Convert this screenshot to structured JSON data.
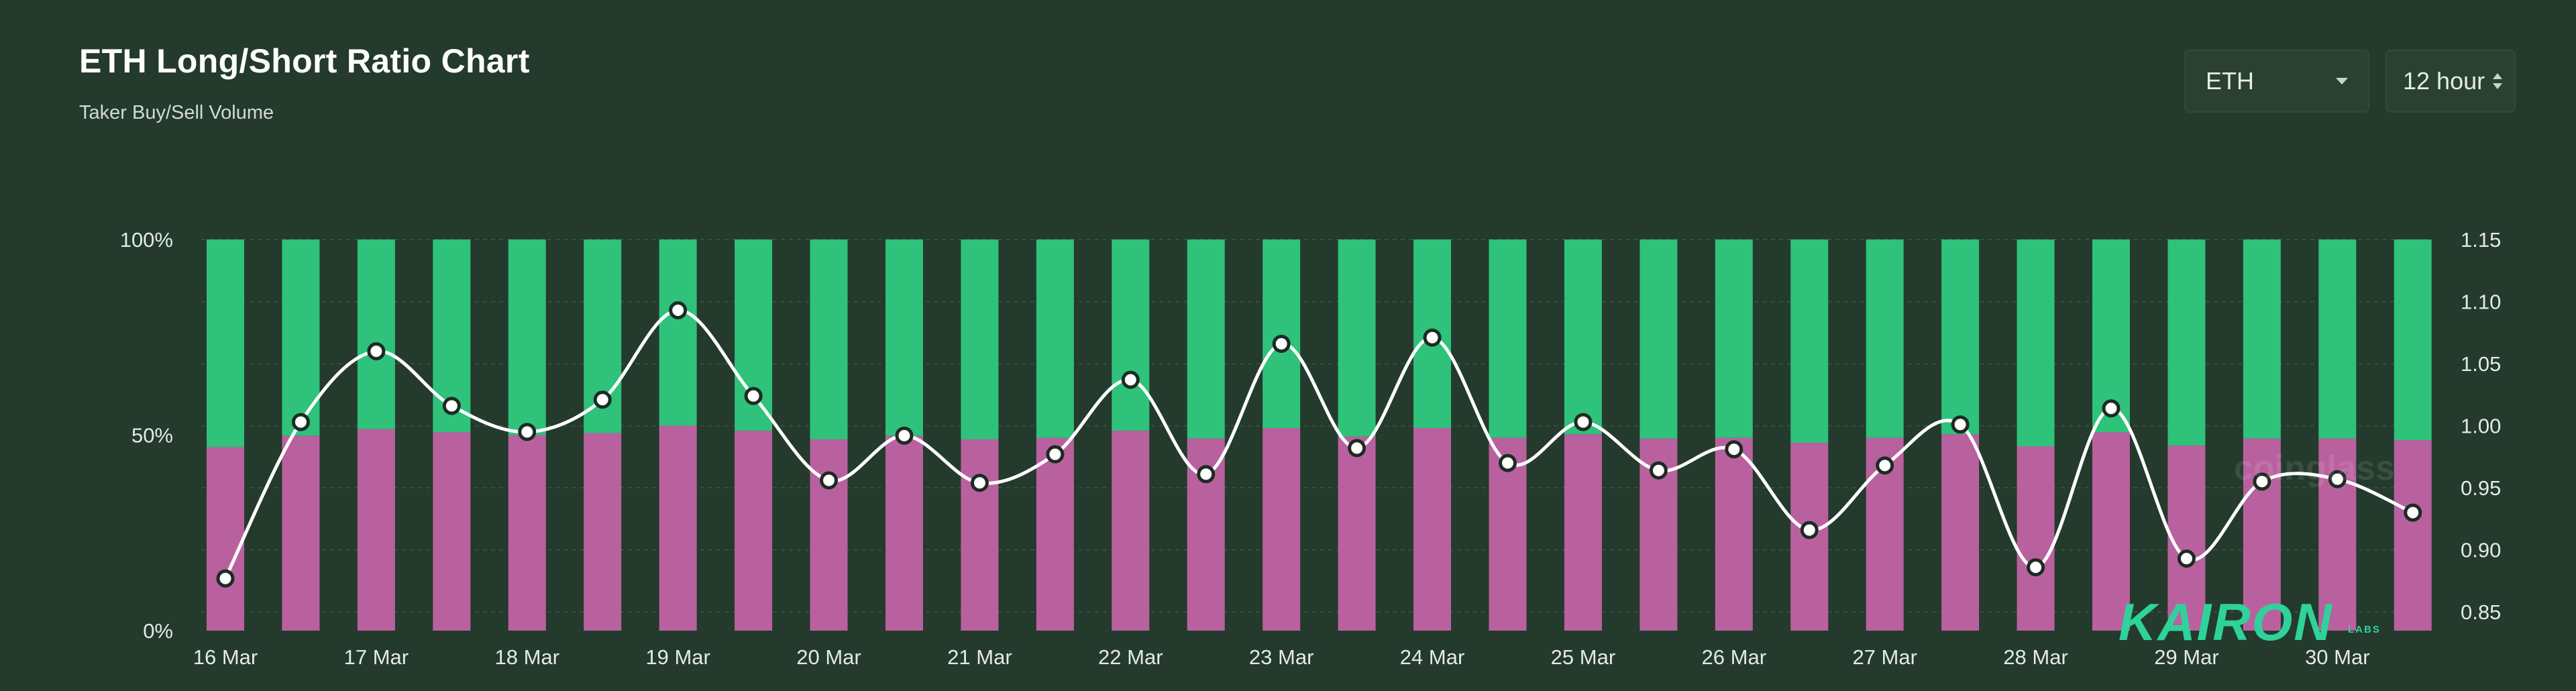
{
  "header": {
    "title": "ETH Long/Short Ratio Chart",
    "subtitle": "Taker Buy/Sell Volume"
  },
  "controls": {
    "asset_value": "ETH",
    "period_value": "12 hour"
  },
  "branding": {
    "watermark_text": "coinglass",
    "logo_text": "KAIRON",
    "logo_sub": "LABS"
  },
  "colors": {
    "background": "#243a2c",
    "long": "#2ec27a",
    "short": "#b9619f",
    "ratio_line": "#ffffff",
    "logo": "#2fd29a"
  },
  "chart_data": {
    "type": "bar",
    "stacked": true,
    "x": [
      "16 Mar",
      "",
      "17 Mar",
      "",
      "18 Mar",
      "",
      "19 Mar",
      "",
      "20 Mar",
      "",
      "21 Mar",
      "",
      "22 Mar",
      "",
      "23 Mar",
      "",
      "24 Mar",
      "",
      "25 Mar",
      "",
      "26 Mar",
      "",
      "27 Mar",
      "",
      "28 Mar",
      "",
      "29 Mar",
      "",
      "30 Mar",
      ""
    ],
    "x_tick_labels": [
      "16 Mar",
      "17 Mar",
      "18 Mar",
      "19 Mar",
      "20 Mar",
      "21 Mar",
      "22 Mar",
      "23 Mar",
      "24 Mar",
      "25 Mar",
      "26 Mar",
      "27 Mar",
      "28 Mar",
      "29 Mar",
      "30 Mar"
    ],
    "series": [
      {
        "axis": "left",
        "values": [
          46.9,
          49.8,
          51.5,
          50.7,
          50.0,
          50.5,
          52.4,
          51.1,
          48.9,
          49.8,
          48.9,
          49.3,
          51.1,
          49.1,
          51.8,
          49.6,
          51.8,
          49.3,
          50.2,
          49.1,
          49.3,
          48.0,
          49.3,
          50.2,
          47.1,
          50.7,
          47.3,
          49.1,
          49.1,
          48.7
        ]
      },
      {
        "axis": "left",
        "values": [
          53.1,
          50.2,
          48.5,
          49.3,
          50.0,
          49.5,
          47.6,
          48.9,
          51.1,
          50.2,
          51.1,
          50.7,
          48.9,
          50.9,
          48.2,
          50.4,
          48.2,
          50.7,
          49.8,
          50.9,
          50.7,
          52.0,
          50.7,
          49.8,
          52.9,
          49.3,
          52.7,
          50.9,
          50.9,
          51.3
        ]
      },
      {
        "axis": "right",
        "type": "line",
        "values": [
          0.877,
          1.003,
          1.06,
          1.016,
          0.995,
          1.021,
          1.093,
          1.024,
          0.956,
          0.992,
          0.954,
          0.977,
          1.037,
          0.961,
          1.066,
          0.982,
          1.071,
          0.97,
          1.003,
          0.964,
          0.981,
          0.916,
          0.968,
          1.001,
          0.886,
          1.014,
          0.893,
          0.955,
          0.957,
          0.93
        ]
      }
    ],
    "left_axis": {
      "ticks": [
        "0%",
        "50%",
        "100%"
      ],
      "range": [
        0,
        100
      ]
    },
    "right_axis": {
      "ticks": [
        "0.85",
        "0.90",
        "0.95",
        "1.00",
        "1.05",
        "1.10",
        "1.15"
      ],
      "range": [
        0.835,
        1.15
      ]
    },
    "grid": true
  }
}
